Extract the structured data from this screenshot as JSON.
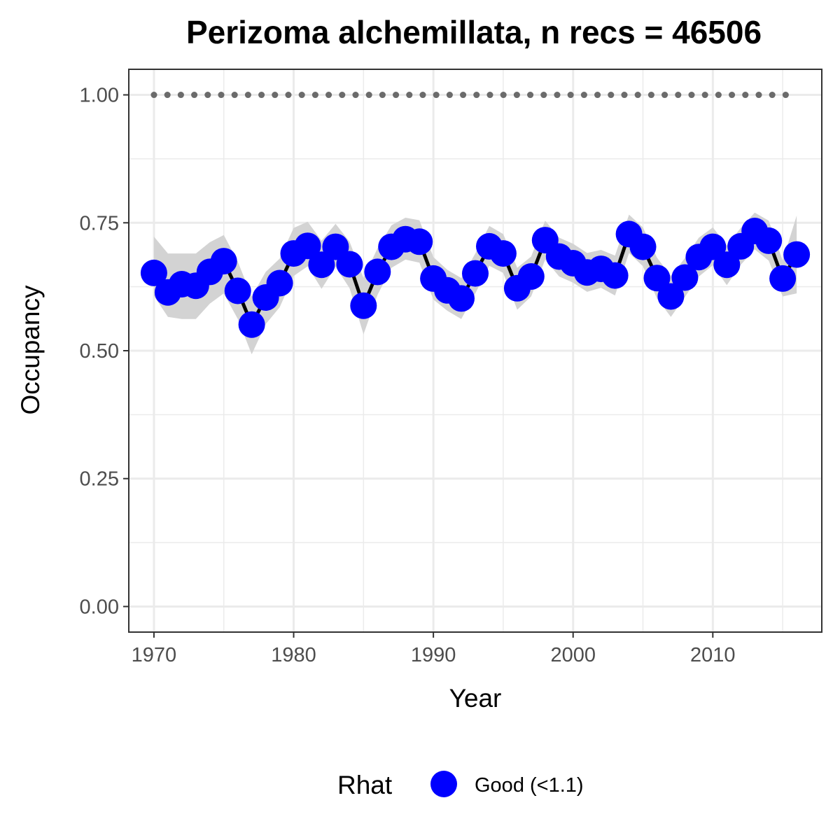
{
  "chart_data": {
    "type": "line",
    "title": "Perizoma alchemillata, n recs = 46506",
    "xlabel": "Year",
    "ylabel": "Occupancy",
    "xlim": [
      1968.2,
      2017.8
    ],
    "ylim": [
      -0.05,
      1.05
    ],
    "x_ticks": [
      1970,
      1980,
      1990,
      2000,
      2010
    ],
    "x_tick_labels": [
      "1970",
      "1980",
      "1990",
      "2000",
      "2010"
    ],
    "y_ticks": [
      0,
      0.25,
      0.5,
      0.75,
      1.0
    ],
    "y_tick_labels": [
      "0.00",
      "0.25",
      "0.50",
      "0.75",
      "1.00"
    ],
    "grid": true,
    "years": [
      1970,
      1971,
      1972,
      1973,
      1974,
      1975,
      1976,
      1977,
      1978,
      1979,
      1980,
      1981,
      1982,
      1983,
      1984,
      1985,
      1986,
      1987,
      1988,
      1989,
      1990,
      1991,
      1992,
      1993,
      1994,
      1995,
      1996,
      1997,
      1998,
      1999,
      2000,
      2001,
      2002,
      2003,
      2004,
      2005,
      2006,
      2007,
      2008,
      2009,
      2010,
      2011,
      2012,
      2013,
      2014,
      2015,
      2016
    ],
    "occupancy": [
      0.652,
      0.614,
      0.63,
      0.627,
      0.654,
      0.675,
      0.617,
      0.551,
      0.604,
      0.632,
      0.69,
      0.705,
      0.668,
      0.703,
      0.669,
      0.588,
      0.654,
      0.703,
      0.718,
      0.713,
      0.641,
      0.618,
      0.602,
      0.651,
      0.704,
      0.69,
      0.622,
      0.645,
      0.716,
      0.684,
      0.671,
      0.653,
      0.66,
      0.647,
      0.728,
      0.703,
      0.642,
      0.606,
      0.643,
      0.683,
      0.703,
      0.668,
      0.704,
      0.734,
      0.715,
      0.641,
      0.688
    ],
    "lower": [
      0.607,
      0.566,
      0.562,
      0.562,
      0.592,
      0.612,
      0.562,
      0.493,
      0.552,
      0.585,
      0.646,
      0.665,
      0.621,
      0.664,
      0.622,
      0.532,
      0.609,
      0.662,
      0.678,
      0.672,
      0.6,
      0.578,
      0.562,
      0.612,
      0.666,
      0.652,
      0.58,
      0.606,
      0.678,
      0.645,
      0.633,
      0.615,
      0.623,
      0.608,
      0.691,
      0.665,
      0.602,
      0.566,
      0.605,
      0.645,
      0.667,
      0.628,
      0.668,
      0.698,
      0.676,
      0.606,
      0.612
    ],
    "upper": [
      0.723,
      0.69,
      0.69,
      0.69,
      0.712,
      0.726,
      0.674,
      0.606,
      0.654,
      0.68,
      0.74,
      0.752,
      0.715,
      0.748,
      0.713,
      0.642,
      0.7,
      0.745,
      0.76,
      0.755,
      0.683,
      0.658,
      0.642,
      0.69,
      0.744,
      0.728,
      0.662,
      0.684,
      0.754,
      0.721,
      0.709,
      0.691,
      0.697,
      0.686,
      0.766,
      0.741,
      0.682,
      0.646,
      0.681,
      0.721,
      0.741,
      0.706,
      0.74,
      0.77,
      0.754,
      0.676,
      0.764
    ],
    "reference_level": 1.0,
    "series": [
      {
        "name": "Good (<1.1)",
        "color": "#0000ff"
      }
    ],
    "legend": {
      "title": "Rhat",
      "position": "bottom",
      "items": [
        "Good (<1.1)"
      ]
    },
    "colors": {
      "points": "#0000ff",
      "line": "#000000",
      "ribbon": "#d3d3d3",
      "reference": "#6b6b6b",
      "grid": "#ebebeb",
      "panel_border": "#333333"
    }
  }
}
